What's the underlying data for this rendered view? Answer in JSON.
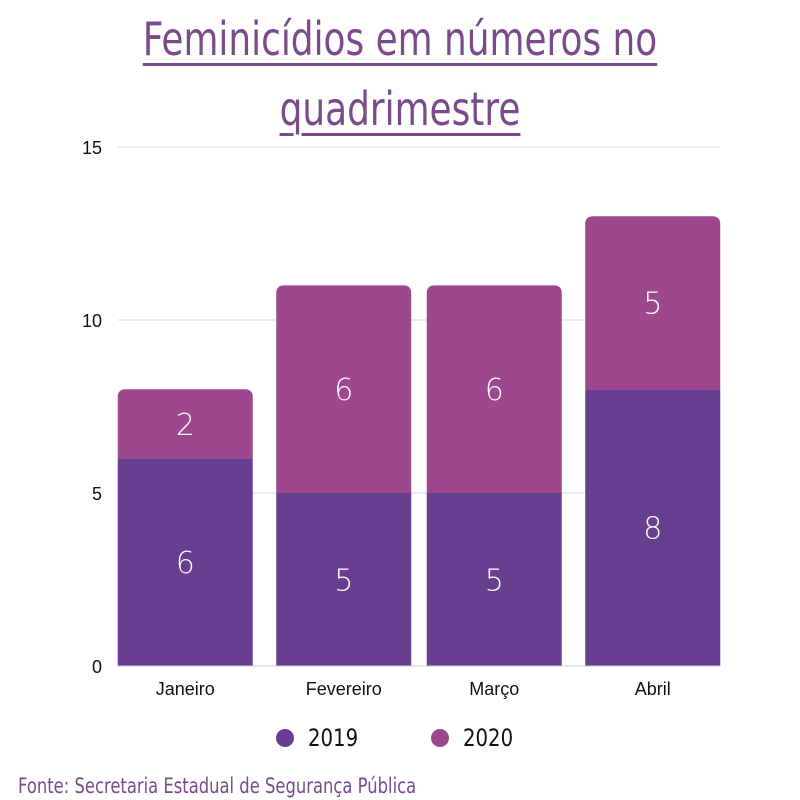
{
  "title": "Feminicídios em números no\nquadrimestre",
  "source": "Fonte: Secretaria Estadual de Segurança Pública",
  "colors": {
    "2019": "#673e90",
    "2020": "#9c478e",
    "grid": "#d9d9d9"
  },
  "chart_data": {
    "type": "bar",
    "stacked": true,
    "categories": [
      "Janeiro",
      "Fevereiro",
      "Março",
      "Abril"
    ],
    "series": [
      {
        "name": "2019",
        "values": [
          6,
          5,
          5,
          8
        ]
      },
      {
        "name": "2020",
        "values": [
          2,
          6,
          6,
          5
        ]
      }
    ],
    "ylim": [
      0,
      15
    ],
    "yticks": [
      0,
      5,
      10,
      15
    ],
    "grid": true,
    "legend_position": "bottom"
  }
}
